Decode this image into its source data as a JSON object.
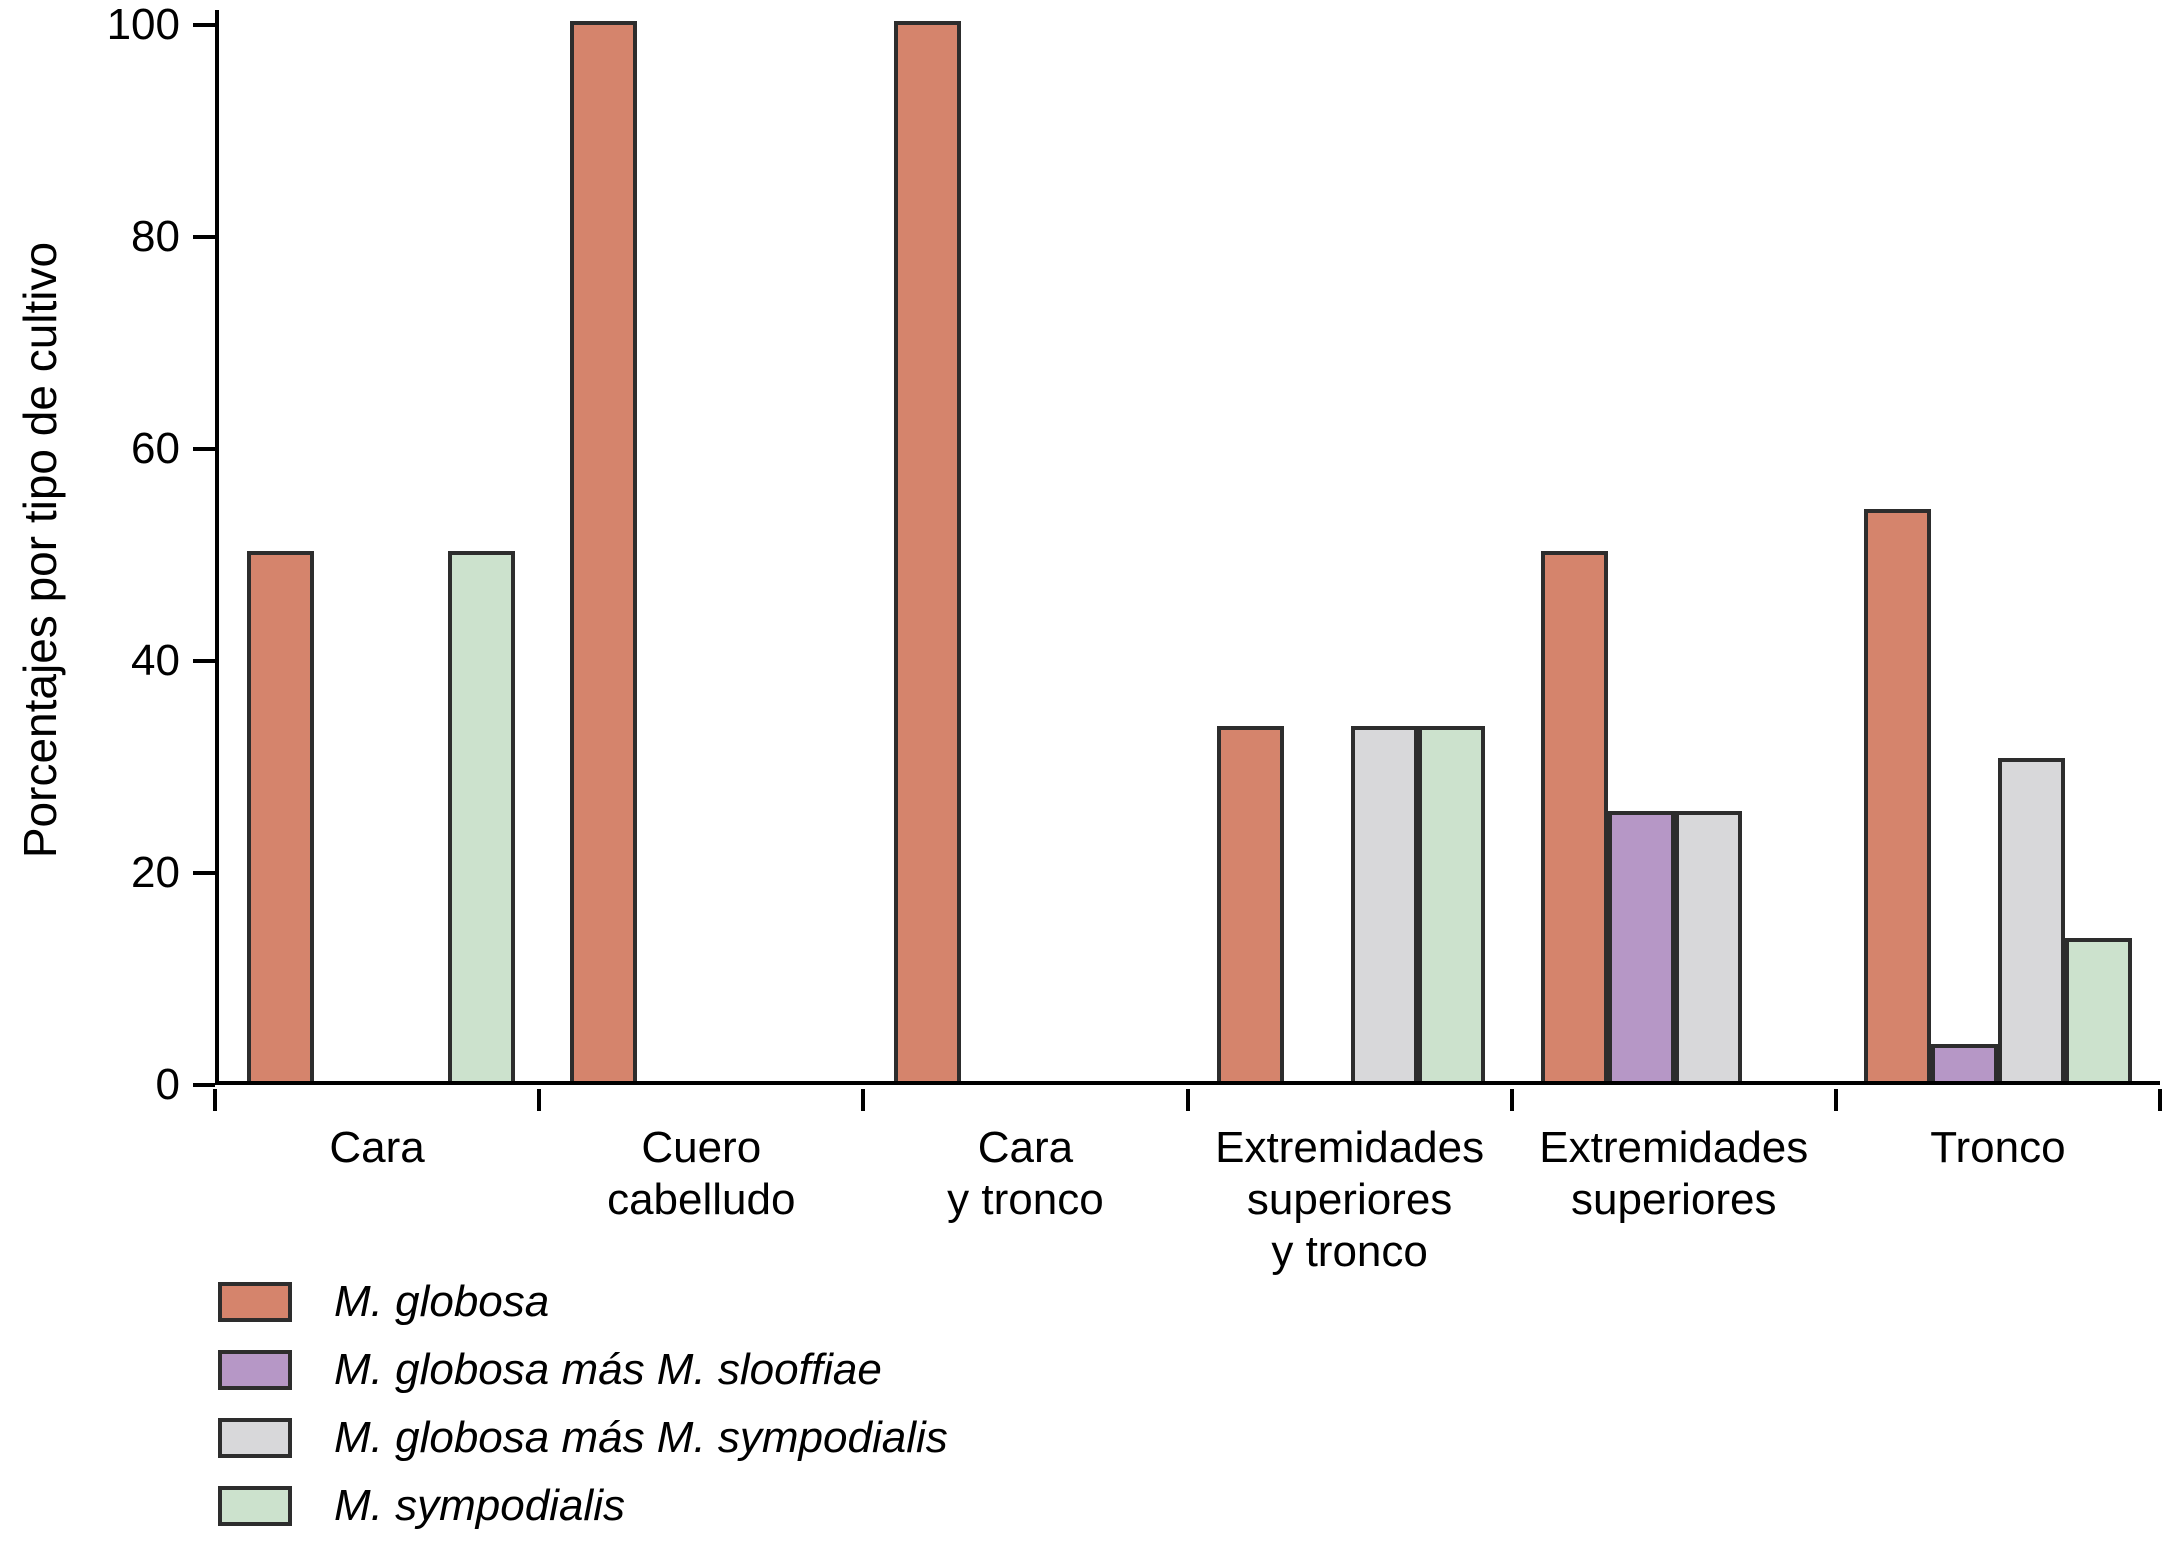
{
  "figure": {
    "background": "#ffffff",
    "axis_color": "#000000",
    "bar_outline_color": "#2d2d2d"
  },
  "chart_data": {
    "type": "bar",
    "title": "",
    "xlabel": "",
    "ylabel": "Porcentajes por tipo de cultivo",
    "ylim": [
      0,
      100
    ],
    "yticks": [
      0,
      20,
      40,
      60,
      80,
      100
    ],
    "grid": false,
    "legend_position": "bottom-left",
    "categories": [
      "Cara",
      "Cuero cabelludo",
      "Cara y tronco",
      "Extremidades superiores y tronco",
      "Extremidades superiores",
      "Tronco"
    ],
    "category_label_lines": [
      [
        "Cara"
      ],
      [
        "Cuero",
        "cabelludo"
      ],
      [
        "Cara",
        "y tronco"
      ],
      [
        "Extremidades",
        "superiores",
        "y tronco"
      ],
      [
        "Extremidades",
        "superiores"
      ],
      [
        "Tronco"
      ]
    ],
    "series": [
      {
        "name": "M. globosa",
        "color": "#d5846c",
        "values": [
          50,
          100,
          100,
          33.5,
          50,
          54
        ]
      },
      {
        "name": "M. globosa más M. slooffiae",
        "color": "#b697c6",
        "values": [
          0,
          0,
          0,
          0,
          25.5,
          3.5
        ]
      },
      {
        "name": "M. globosa más M. sympodialis",
        "color": "#d8d8da",
        "values": [
          0,
          0,
          0,
          33.5,
          25.5,
          30.5
        ]
      },
      {
        "name": "M. sympodialis",
        "color": "#cce2cd",
        "values": [
          50,
          0,
          0,
          33.5,
          0,
          13.5
        ]
      }
    ]
  }
}
